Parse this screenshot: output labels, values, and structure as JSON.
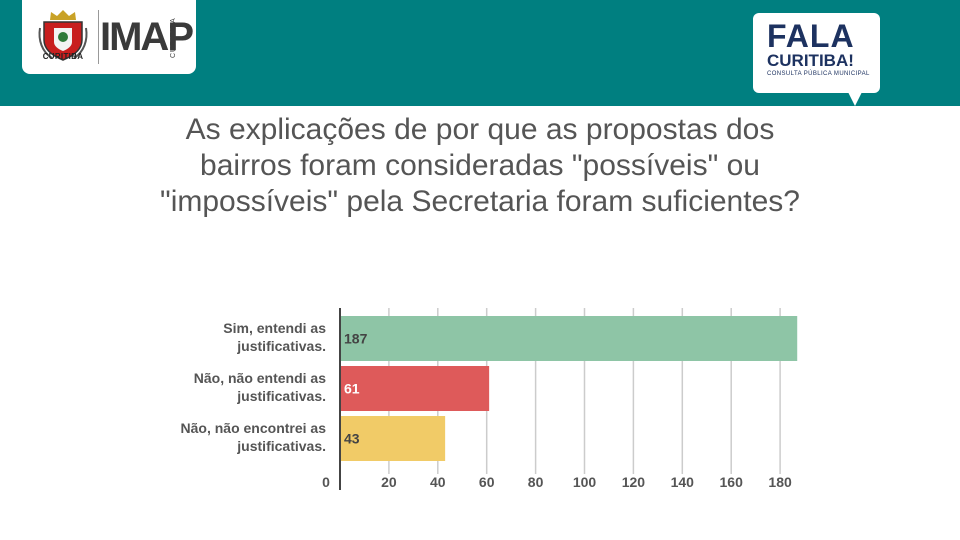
{
  "header": {
    "crest_city": "CURITIBA",
    "imap_logo": "IMAP",
    "imap_side": "CURITIBA",
    "fala_line1": "FALA",
    "fala_line2": "CURITIBA!",
    "fala_line3": "CONSULTA PÚBLICA MUNICIPAL",
    "band_color": "#007f80",
    "fala_color": "#1d3260"
  },
  "chart_data": {
    "type": "bar",
    "orientation": "horizontal",
    "title": "As explicações de por que as propostas dos bairros foram consideradas \"possíveis\" ou \"impossíveis\" pela Secretaria foram suficientes?",
    "categories": [
      "Sim, entendi as justificativas.",
      "Não, não entendi as justificativas.",
      "Não, não encontrei as justificativas."
    ],
    "category_lines": [
      [
        "Sim, entendi as",
        "justificativas."
      ],
      [
        "Não, não entendi as",
        "justificativas."
      ],
      [
        "Não, não encontrei as",
        "justificativas."
      ]
    ],
    "values": [
      187,
      61,
      43
    ],
    "bar_colors": [
      "#8ec5a6",
      "#de5a5a",
      "#f1cb67"
    ],
    "xlim": [
      0,
      190
    ],
    "xticks": [
      0,
      20,
      40,
      60,
      80,
      100,
      120,
      140,
      160,
      180
    ],
    "grid": true,
    "legend": "none"
  }
}
